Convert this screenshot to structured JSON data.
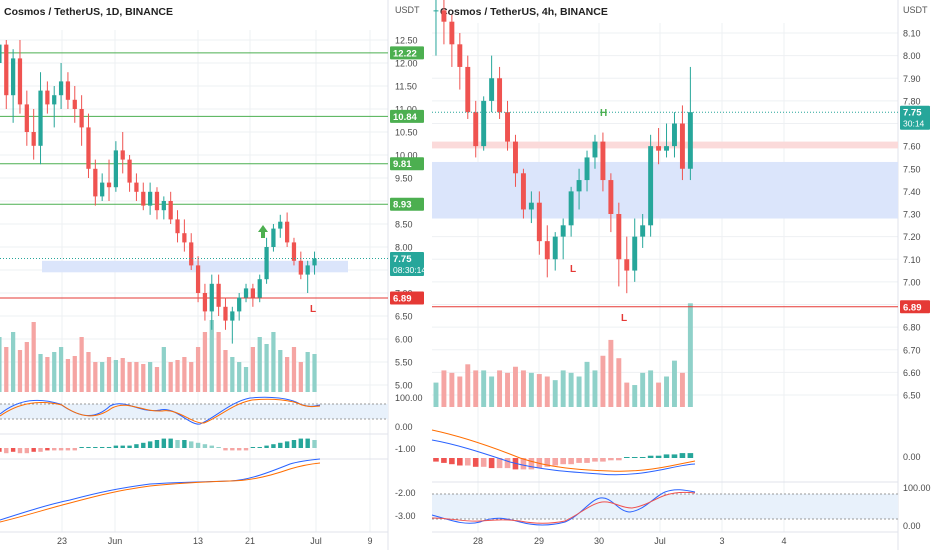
{
  "colors": {
    "up": "#26a69a",
    "down": "#ef5350",
    "up_vol": "#8fd1c9",
    "down_vol": "#f5a5a3",
    "green_line": "#4caf50",
    "red_line": "#e53935",
    "blue_zone": "#dbe5fb",
    "red_zone": "#fbdada",
    "macd_line": "#2962ff",
    "signal_line": "#ff6d00",
    "grid": "#eef0f3",
    "axis_text": "#4a4a4a",
    "price_tag": "#26a69a"
  },
  "chart_data": [
    {
      "type": "candlestick",
      "title": "Cosmos / TetherUS, 1D, BINANCE",
      "currency_label": "USDT",
      "price_ticks": [
        "12.50",
        "12.00",
        "11.50",
        "11.00",
        "10.50",
        "10.00",
        "9.50",
        "9.00",
        "8.50",
        "8.00",
        "7.50",
        "7.00",
        "6.50",
        "6.00",
        "5.50",
        "5.00"
      ],
      "x_ticks": [
        "23",
        "Jun",
        "13",
        "21",
        "Jul",
        "9"
      ],
      "levels": [
        {
          "value": 12.22,
          "label": "12.22",
          "color": "green"
        },
        {
          "value": 10.84,
          "label": "10.84",
          "color": "green"
        },
        {
          "value": 9.81,
          "label": "9.81",
          "color": "green"
        },
        {
          "value": 8.93,
          "label": "8.93",
          "color": "green"
        },
        {
          "value": 6.89,
          "label": "6.89",
          "color": "red"
        }
      ],
      "last_price": {
        "value": "7.75",
        "countdown": "08:30:14"
      },
      "zone": {
        "low": 7.45,
        "high": 7.7
      },
      "markers": [
        {
          "label": "L",
          "color": "red"
        }
      ],
      "ohlc": [
        [
          12.0,
          12.6,
          11.2,
          12.4
        ],
        [
          12.4,
          12.5,
          11.0,
          11.3
        ],
        [
          11.3,
          12.3,
          10.7,
          12.1
        ],
        [
          12.1,
          12.5,
          10.9,
          11.1
        ],
        [
          11.1,
          11.4,
          10.2,
          10.5
        ],
        [
          10.5,
          11.0,
          9.9,
          10.2
        ],
        [
          10.2,
          11.8,
          9.8,
          11.4
        ],
        [
          11.4,
          11.6,
          10.9,
          11.1
        ],
        [
          11.1,
          11.5,
          10.6,
          11.3
        ],
        [
          11.3,
          12.0,
          11.0,
          11.6
        ],
        [
          11.6,
          11.8,
          11.0,
          11.2
        ],
        [
          11.2,
          11.5,
          10.7,
          11.0
        ],
        [
          11.0,
          11.3,
          10.2,
          10.6
        ],
        [
          10.6,
          10.9,
          9.5,
          9.7
        ],
        [
          9.7,
          9.9,
          8.9,
          9.1
        ],
        [
          9.1,
          9.6,
          9.0,
          9.4
        ],
        [
          9.4,
          9.9,
          9.0,
          9.3
        ],
        [
          9.3,
          10.3,
          9.2,
          10.1
        ],
        [
          10.1,
          10.5,
          9.6,
          9.9
        ],
        [
          9.9,
          10.0,
          9.2,
          9.4
        ],
        [
          9.4,
          9.6,
          9.0,
          9.2
        ],
        [
          9.2,
          9.4,
          8.8,
          8.9
        ],
        [
          8.9,
          9.4,
          8.7,
          9.2
        ],
        [
          9.2,
          9.3,
          8.6,
          8.8
        ],
        [
          8.8,
          9.1,
          8.6,
          9.0
        ],
        [
          9.0,
          9.2,
          8.5,
          8.6
        ],
        [
          8.6,
          8.8,
          8.1,
          8.3
        ],
        [
          8.3,
          8.6,
          7.9,
          8.1
        ],
        [
          8.1,
          8.3,
          7.5,
          7.6
        ],
        [
          7.6,
          7.8,
          6.8,
          7.0
        ],
        [
          7.0,
          7.2,
          6.4,
          6.6
        ],
        [
          6.6,
          7.4,
          6.2,
          7.2
        ],
        [
          7.2,
          7.4,
          6.5,
          6.7
        ],
        [
          6.7,
          6.9,
          6.2,
          6.4
        ],
        [
          6.4,
          6.7,
          5.9,
          6.6
        ],
        [
          6.6,
          7.0,
          6.4,
          6.9
        ],
        [
          6.9,
          7.2,
          6.8,
          7.1
        ],
        [
          7.1,
          7.2,
          6.7,
          6.9
        ],
        [
          6.9,
          7.4,
          6.8,
          7.3
        ],
        [
          7.3,
          8.2,
          7.2,
          8.0
        ],
        [
          8.0,
          8.5,
          7.9,
          8.4
        ],
        [
          8.4,
          8.7,
          8.2,
          8.55
        ],
        [
          8.55,
          8.75,
          8.0,
          8.1
        ],
        [
          8.1,
          8.2,
          7.6,
          7.7
        ],
        [
          7.7,
          7.9,
          7.3,
          7.4
        ],
        [
          7.4,
          7.7,
          7.0,
          7.6
        ],
        [
          7.6,
          7.9,
          7.4,
          7.75
        ]
      ],
      "volume": [
        0.55,
        0.45,
        0.6,
        0.42,
        0.5,
        0.7,
        0.38,
        0.35,
        0.4,
        0.45,
        0.33,
        0.36,
        0.55,
        0.4,
        0.3,
        0.3,
        0.35,
        0.32,
        0.34,
        0.3,
        0.3,
        0.28,
        0.3,
        0.25,
        0.45,
        0.3,
        0.32,
        0.35,
        0.3,
        0.45,
        0.6,
        0.72,
        0.6,
        0.42,
        0.35,
        0.3,
        0.25,
        0.45,
        0.55,
        0.48,
        0.6,
        0.42,
        0.35,
        0.45,
        0.3,
        0.4,
        0.38
      ],
      "volume_ticks": [],
      "stoch_ticks": [
        "100.00",
        "0.00"
      ],
      "macd_ticks": [
        "-1.00",
        "-2.00",
        "-3.00"
      ]
    },
    {
      "type": "candlestick",
      "title": "Cosmos / TetherUS, 4h, BINANCE",
      "currency_label": "USDT",
      "price_ticks": [
        "8.10",
        "8.00",
        "7.90",
        "7.80",
        "7.70",
        "7.60",
        "7.50",
        "7.40",
        "7.30",
        "7.20",
        "7.10",
        "7.00",
        "6.90",
        "6.80",
        "6.70",
        "6.60",
        "6.50"
      ],
      "x_ticks": [
        "28",
        "29",
        "30",
        "Jul",
        "3",
        "4"
      ],
      "levels": [
        {
          "value": 6.89,
          "label": "6.89",
          "color": "red"
        }
      ],
      "last_price": {
        "value": "7.75",
        "countdown": "30:14"
      },
      "zones": [
        {
          "low": 7.59,
          "high": 7.62,
          "kind": "red"
        },
        {
          "low": 7.28,
          "high": 7.53,
          "kind": "blue"
        }
      ],
      "markers": [
        {
          "label": "H",
          "color": "green"
        },
        {
          "label": "L",
          "color": "red"
        },
        {
          "label": "L",
          "color": "red"
        }
      ],
      "ohlc": [
        [
          8.2,
          8.25,
          8.0,
          8.2
        ],
        [
          8.2,
          8.25,
          8.05,
          8.15
        ],
        [
          8.15,
          8.18,
          7.95,
          8.05
        ],
        [
          8.05,
          8.1,
          7.85,
          7.95
        ],
        [
          7.95,
          8.0,
          7.72,
          7.75
        ],
        [
          7.75,
          7.8,
          7.55,
          7.6
        ],
        [
          7.6,
          7.82,
          7.58,
          7.8
        ],
        [
          7.8,
          8.0,
          7.75,
          7.9
        ],
        [
          7.9,
          7.95,
          7.72,
          7.75
        ],
        [
          7.75,
          7.8,
          7.58,
          7.62
        ],
        [
          7.62,
          7.65,
          7.42,
          7.48
        ],
        [
          7.48,
          7.5,
          7.28,
          7.32
        ],
        [
          7.32,
          7.4,
          7.26,
          7.35
        ],
        [
          7.35,
          7.4,
          7.12,
          7.18
        ],
        [
          7.18,
          7.25,
          7.02,
          7.1
        ],
        [
          7.1,
          7.22,
          7.05,
          7.2
        ],
        [
          7.2,
          7.28,
          7.1,
          7.25
        ],
        [
          7.25,
          7.42,
          7.2,
          7.4
        ],
        [
          7.4,
          7.5,
          7.32,
          7.45
        ],
        [
          7.45,
          7.58,
          7.4,
          7.55
        ],
        [
          7.55,
          7.65,
          7.5,
          7.62
        ],
        [
          7.62,
          7.66,
          7.4,
          7.45
        ],
        [
          7.45,
          7.48,
          7.22,
          7.3
        ],
        [
          7.3,
          7.35,
          6.98,
          7.1
        ],
        [
          7.1,
          7.2,
          6.95,
          7.05
        ],
        [
          7.05,
          7.28,
          7.0,
          7.2
        ],
        [
          7.2,
          7.3,
          7.15,
          7.25
        ],
        [
          7.25,
          7.65,
          7.2,
          7.6
        ],
        [
          7.6,
          7.68,
          7.52,
          7.58
        ],
        [
          7.58,
          7.7,
          7.55,
          7.6
        ],
        [
          7.6,
          7.75,
          7.55,
          7.7
        ],
        [
          7.7,
          7.78,
          7.45,
          7.5
        ],
        [
          7.5,
          7.95,
          7.45,
          7.75
        ]
      ],
      "volume": [
        0.2,
        0.3,
        0.28,
        0.25,
        0.35,
        0.3,
        0.3,
        0.25,
        0.3,
        0.28,
        0.33,
        0.3,
        0.28,
        0.27,
        0.25,
        0.22,
        0.3,
        0.28,
        0.25,
        0.37,
        0.3,
        0.42,
        0.55,
        0.4,
        0.2,
        0.18,
        0.28,
        0.3,
        0.2,
        0.25,
        0.38,
        0.28,
        0.85
      ],
      "stoch_ticks": [
        "100.00",
        "0.00"
      ],
      "macd_ticks": [
        "0.00"
      ]
    }
  ]
}
